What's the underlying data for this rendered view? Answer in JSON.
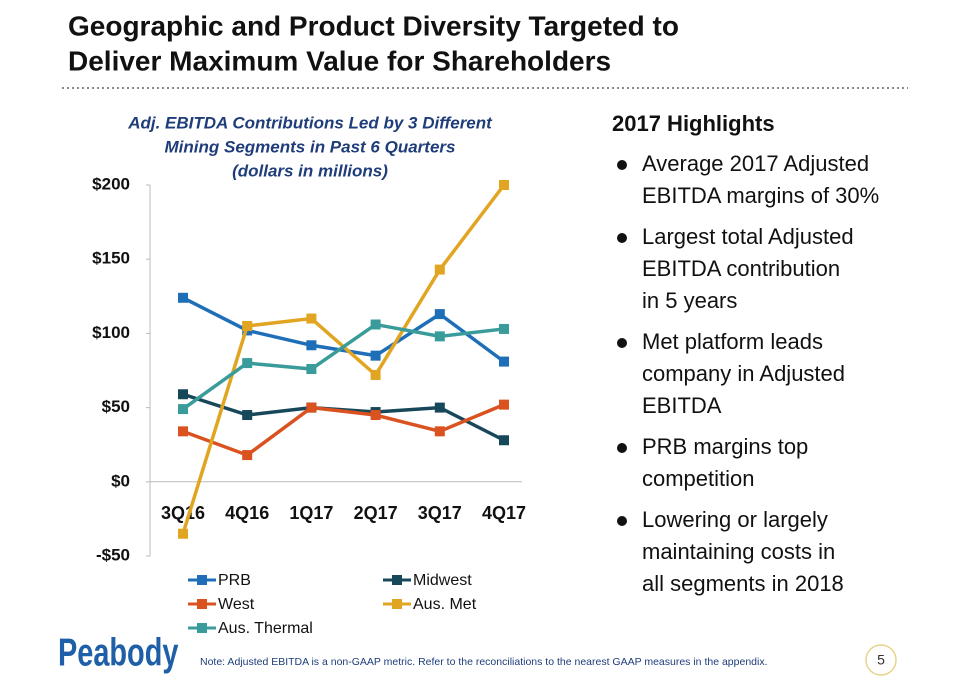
{
  "header": {
    "title": [
      "Geographic and Product Diversity Targeted to",
      "Deliver Maximum Value for Shareholders"
    ]
  },
  "chart_data": {
    "type": "line",
    "title": [
      "Adj. EBITDA Contributions Led by 3 Different",
      "Mining Segments in Past 6 Quarters"
    ],
    "subtitle": "(dollars in millions)",
    "categories": [
      "3Q16",
      "4Q16",
      "1Q17",
      "2Q17",
      "3Q17",
      "4Q17"
    ],
    "series": [
      {
        "name": "PRB",
        "color": "#1f6fb8",
        "values": [
          124,
          102,
          92,
          85,
          113,
          81
        ]
      },
      {
        "name": "Midwest",
        "color": "#17485a",
        "values": [
          59,
          45,
          50,
          47,
          50,
          28
        ]
      },
      {
        "name": "West",
        "color": "#d9521f",
        "values": [
          34,
          18,
          50,
          45,
          34,
          52
        ]
      },
      {
        "name": "Aus. Met",
        "color": "#e2a521",
        "values": [
          -35,
          105,
          110,
          72,
          143,
          200
        ]
      },
      {
        "name": "Aus. Thermal",
        "color": "#3a9c9a",
        "values": [
          49,
          80,
          76,
          106,
          98,
          103
        ]
      }
    ],
    "ylim": [
      -50,
      200
    ],
    "yticks": [
      {
        "value": -50,
        "label": "-$50"
      },
      {
        "value": 0,
        "label": "$0"
      },
      {
        "value": 50,
        "label": "$50"
      },
      {
        "value": 100,
        "label": "$100"
      },
      {
        "value": 150,
        "label": "$150"
      },
      {
        "value": 200,
        "label": "$200"
      }
    ],
    "grid": false
  },
  "highlights": {
    "title": "2017 Highlights",
    "bullets": [
      [
        "Average 2017 Adjusted",
        "EBITDA margins of 30%"
      ],
      [
        "Largest total Adjusted",
        "EBITDA contribution",
        "in 5 years"
      ],
      [
        "Met platform leads",
        "company in Adjusted",
        "EBITDA"
      ],
      [
        "PRB margins top",
        "competition"
      ],
      [
        "Lowering or largely",
        "maintaining costs in",
        "all segments in 2018"
      ]
    ]
  },
  "footer": {
    "logo": "Peabody",
    "note": "Note: Adjusted EBITDA is a non-GAAP metric.  Refer to the reconciliations to the nearest GAAP measures in the appendix.",
    "page": "5"
  }
}
